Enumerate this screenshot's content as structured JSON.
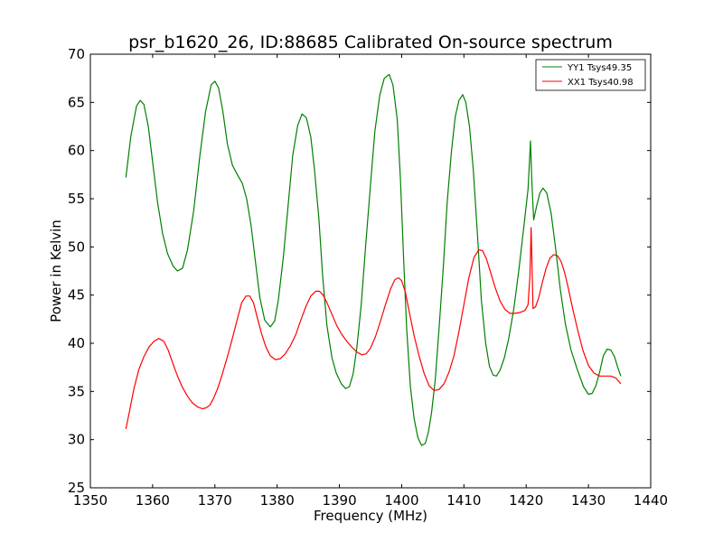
{
  "chart_data": {
    "type": "line",
    "title": "psr_b1620_26, ID:88685 Calibrated On-source spectrum",
    "xlabel": "Frequency (MHz)",
    "ylabel": "Power in Kelvin",
    "xlim": [
      1350,
      1440
    ],
    "ylim": [
      25,
      70
    ],
    "x_ticks": [
      1350,
      1360,
      1370,
      1380,
      1390,
      1400,
      1410,
      1420,
      1430,
      1440
    ],
    "y_ticks": [
      25,
      30,
      35,
      40,
      45,
      50,
      55,
      60,
      65,
      70
    ],
    "grid": false,
    "legend_position": "top-right",
    "series": [
      {
        "name": "YY1 Tsys49.35",
        "color": "#008000",
        "x": [
          1355.7,
          1356.5,
          1357.4,
          1358.0,
          1358.6,
          1359.3,
          1360.0,
          1360.8,
          1361.6,
          1362.4,
          1363.3,
          1364.0,
          1364.8,
          1365.6,
          1366.6,
          1367.6,
          1368.5,
          1369.4,
          1370.0,
          1370.6,
          1371.3,
          1372.0,
          1372.8,
          1373.6,
          1374.4,
          1375.1,
          1375.8,
          1376.5,
          1377.2,
          1378.0,
          1378.9,
          1379.6,
          1380.2,
          1381.0,
          1381.8,
          1382.5,
          1383.3,
          1384.0,
          1384.7,
          1385.4,
          1386.0,
          1386.7,
          1387.3,
          1388.0,
          1388.8,
          1389.5,
          1390.3,
          1391.0,
          1391.6,
          1392.2,
          1392.8,
          1393.5,
          1394.2,
          1395.0,
          1395.7,
          1396.5,
          1397.2,
          1398.0,
          1398.6,
          1399.3,
          1399.8,
          1400.3,
          1400.8,
          1401.4,
          1402.0,
          1402.6,
          1403.2,
          1403.8,
          1404.3,
          1404.8,
          1405.4,
          1406.0,
          1406.7,
          1407.3,
          1408.0,
          1408.6,
          1409.2,
          1409.8,
          1410.3,
          1410.9,
          1411.5,
          1412.2,
          1412.8,
          1413.5,
          1414.1,
          1414.7,
          1415.2,
          1415.8,
          1416.5,
          1417.2,
          1418.0,
          1418.8,
          1419.6,
          1420.3,
          1420.7,
          1420.9,
          1421.2,
          1421.7,
          1422.2,
          1422.7,
          1423.3,
          1424.0,
          1424.7,
          1425.5,
          1426.3,
          1427.2,
          1428.2,
          1429.2,
          1430.0,
          1430.6,
          1431.2,
          1431.8,
          1432.4,
          1433.0,
          1433.6,
          1434.2,
          1434.7,
          1435.2
        ],
        "y": [
          57.2,
          61.5,
          64.6,
          65.2,
          64.8,
          62.5,
          58.8,
          54.6,
          51.4,
          49.3,
          48.0,
          47.5,
          47.8,
          49.7,
          53.8,
          59.5,
          64.0,
          66.8,
          67.2,
          66.5,
          64.0,
          60.7,
          58.5,
          57.5,
          56.6,
          55.0,
          52.3,
          48.5,
          44.8,
          42.4,
          41.7,
          42.3,
          44.5,
          49.0,
          54.6,
          59.5,
          62.6,
          63.8,
          63.4,
          61.4,
          58.0,
          53.0,
          47.0,
          41.8,
          38.5,
          36.9,
          35.8,
          35.3,
          35.5,
          36.8,
          39.5,
          44.0,
          50.0,
          56.5,
          62.0,
          65.8,
          67.5,
          67.9,
          66.8,
          63.2,
          57.0,
          49.0,
          41.5,
          35.5,
          32.2,
          30.2,
          29.4,
          29.6,
          30.8,
          32.8,
          36.2,
          41.5,
          48.0,
          54.5,
          60.0,
          63.5,
          65.2,
          65.8,
          65.0,
          62.5,
          58.0,
          51.0,
          44.5,
          40.0,
          37.6,
          36.7,
          36.6,
          37.2,
          38.5,
          40.5,
          43.5,
          47.5,
          52.0,
          56.0,
          61.0,
          57.0,
          52.8,
          54.3,
          55.6,
          56.1,
          55.6,
          53.5,
          50.0,
          45.5,
          42.0,
          39.3,
          37.3,
          35.5,
          34.7,
          34.8,
          35.6,
          37.0,
          38.7,
          39.4,
          39.3,
          38.6,
          37.5,
          36.6
        ]
      },
      {
        "name": "XX1 Tsys40.98",
        "color": "#ff0000",
        "x": [
          1355.7,
          1356.3,
          1357.0,
          1357.8,
          1358.6,
          1359.4,
          1360.2,
          1361.0,
          1361.8,
          1362.5,
          1363.2,
          1364.0,
          1364.8,
          1365.6,
          1366.4,
          1367.2,
          1368.0,
          1368.6,
          1369.2,
          1369.8,
          1370.5,
          1371.2,
          1372.0,
          1372.8,
          1373.6,
          1374.3,
          1375.0,
          1375.6,
          1376.2,
          1376.8,
          1377.5,
          1378.2,
          1378.9,
          1379.7,
          1380.5,
          1381.3,
          1382.1,
          1383.0,
          1383.8,
          1384.6,
          1385.4,
          1386.2,
          1386.8,
          1387.4,
          1388.0,
          1388.8,
          1389.6,
          1390.4,
          1391.2,
          1392.0,
          1392.8,
          1393.6,
          1394.3,
          1395.0,
          1395.8,
          1396.6,
          1397.4,
          1398.2,
          1398.9,
          1399.5,
          1400.0,
          1400.6,
          1401.3,
          1402.0,
          1402.8,
          1403.6,
          1404.4,
          1405.2,
          1406.0,
          1406.8,
          1407.6,
          1408.4,
          1409.2,
          1410.0,
          1410.8,
          1411.6,
          1412.4,
          1413.0,
          1413.6,
          1414.3,
          1415.0,
          1415.8,
          1416.6,
          1417.4,
          1418.2,
          1419.0,
          1419.8,
          1420.3,
          1420.6,
          1420.8,
          1421.1,
          1421.5,
          1422.0,
          1422.6,
          1423.2,
          1423.8,
          1424.4,
          1425.0,
          1425.6,
          1426.2,
          1426.8,
          1427.5,
          1428.3,
          1429.1,
          1430.0,
          1430.9,
          1431.8,
          1432.7,
          1433.6,
          1434.4,
          1435.2
        ],
        "y": [
          31.1,
          33.0,
          35.3,
          37.3,
          38.6,
          39.6,
          40.2,
          40.5,
          40.2,
          39.3,
          38.0,
          36.6,
          35.4,
          34.5,
          33.8,
          33.4,
          33.2,
          33.3,
          33.6,
          34.3,
          35.4,
          36.8,
          38.6,
          40.5,
          42.5,
          44.2,
          44.9,
          44.9,
          44.2,
          42.7,
          41.0,
          39.6,
          38.7,
          38.3,
          38.4,
          38.9,
          39.7,
          40.9,
          42.4,
          43.8,
          44.9,
          45.4,
          45.4,
          45.0,
          44.2,
          43.0,
          41.8,
          40.9,
          40.2,
          39.6,
          39.1,
          38.8,
          38.9,
          39.5,
          40.7,
          42.3,
          44.0,
          45.6,
          46.6,
          46.8,
          46.5,
          45.3,
          43.0,
          40.8,
          38.7,
          36.9,
          35.6,
          35.1,
          35.2,
          35.8,
          37.0,
          38.7,
          41.2,
          44.0,
          46.8,
          48.9,
          49.7,
          49.6,
          48.8,
          47.3,
          45.8,
          44.4,
          43.5,
          43.1,
          43.1,
          43.2,
          43.4,
          44.0,
          47.0,
          52.0,
          43.6,
          43.8,
          44.7,
          46.3,
          47.8,
          48.8,
          49.2,
          49.1,
          48.5,
          47.3,
          45.6,
          43.5,
          41.3,
          39.3,
          37.7,
          36.9,
          36.6,
          36.6,
          36.6,
          36.4,
          35.8
        ]
      }
    ]
  }
}
